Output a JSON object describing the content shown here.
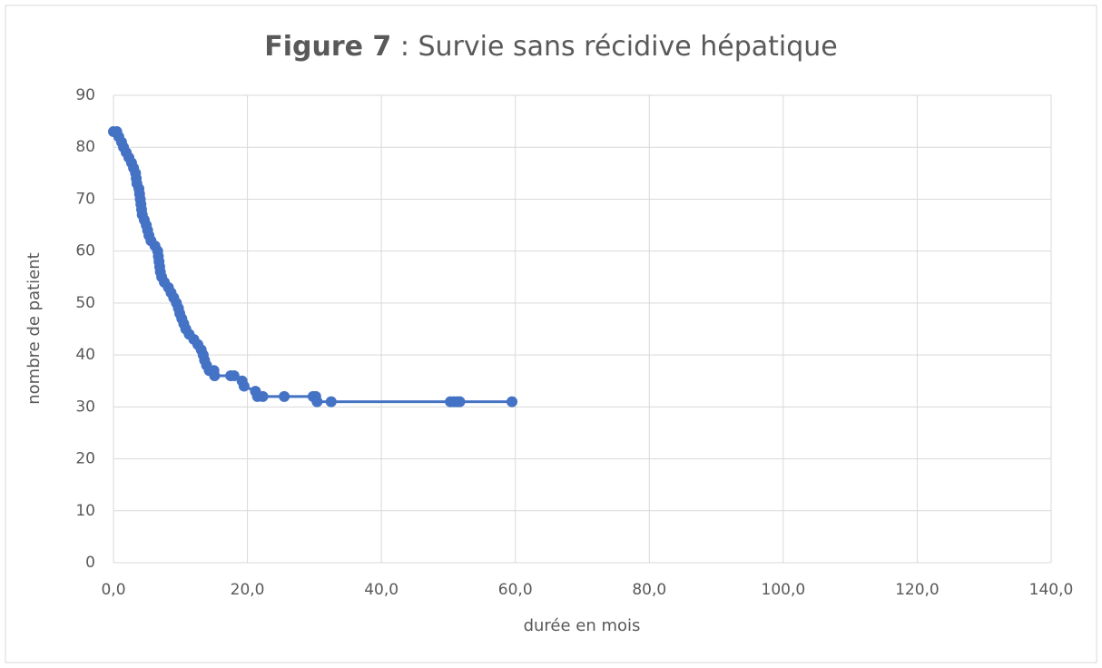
{
  "chart_data": {
    "type": "line",
    "title": {
      "bold": "Figure 7",
      "rest": " : Survie sans récidive hépatique"
    },
    "x_label": "durée en mois",
    "y_label": "nombre de patient",
    "x": [
      0.0,
      0.5,
      0.8,
      1.2,
      1.5,
      1.9,
      2.3,
      2.7,
      3.0,
      3.3,
      3.4,
      3.5,
      3.8,
      3.9,
      4.0,
      4.1,
      4.2,
      4.3,
      4.6,
      4.9,
      5.1,
      5.3,
      5.6,
      6.2,
      6.6,
      6.7,
      6.8,
      6.9,
      7.0,
      7.2,
      7.6,
      8.2,
      8.6,
      9.0,
      9.4,
      9.7,
      9.9,
      10.2,
      10.5,
      10.8,
      11.3,
      12.0,
      12.6,
      13.1,
      13.4,
      13.6,
      13.9,
      14.3,
      15.0,
      15.1,
      17.5,
      18.0,
      19.2,
      19.5,
      21.2,
      21.5,
      22.3,
      25.5,
      29.8,
      30.2,
      30.4,
      32.5,
      50.3,
      50.8,
      51.3,
      51.7,
      59.5
    ],
    "series": [
      {
        "name": "nombre de patient",
        "color": "#4472c4",
        "values": [
          83,
          83,
          82,
          81,
          80,
          79,
          78,
          77,
          76,
          75,
          74,
          73,
          72,
          71,
          70,
          69,
          68,
          67,
          66,
          65,
          64,
          63,
          62,
          61,
          60,
          59,
          58,
          57,
          56,
          55,
          54,
          53,
          52,
          51,
          50,
          49,
          48,
          47,
          46,
          45,
          44,
          43,
          42,
          41,
          40,
          39,
          38,
          37,
          37,
          36,
          36,
          36,
          35,
          34,
          33,
          32,
          32,
          32,
          32,
          32,
          31,
          31,
          31,
          31,
          31,
          31,
          31
        ]
      }
    ],
    "xlim": [
      0,
      140
    ],
    "xticks": [
      {
        "value": 0,
        "label": "0,0"
      },
      {
        "value": 20,
        "label": "20,0"
      },
      {
        "value": 40,
        "label": "40,0"
      },
      {
        "value": 60,
        "label": "60,0"
      },
      {
        "value": 80,
        "label": "80,0"
      },
      {
        "value": 100,
        "label": "100,0"
      },
      {
        "value": 120,
        "label": "120,0"
      },
      {
        "value": 140,
        "label": "140,0"
      }
    ],
    "ylim": [
      0,
      90
    ],
    "yticks": [
      0,
      10,
      20,
      30,
      40,
      50,
      60,
      70,
      80,
      90
    ],
    "grid": true
  }
}
